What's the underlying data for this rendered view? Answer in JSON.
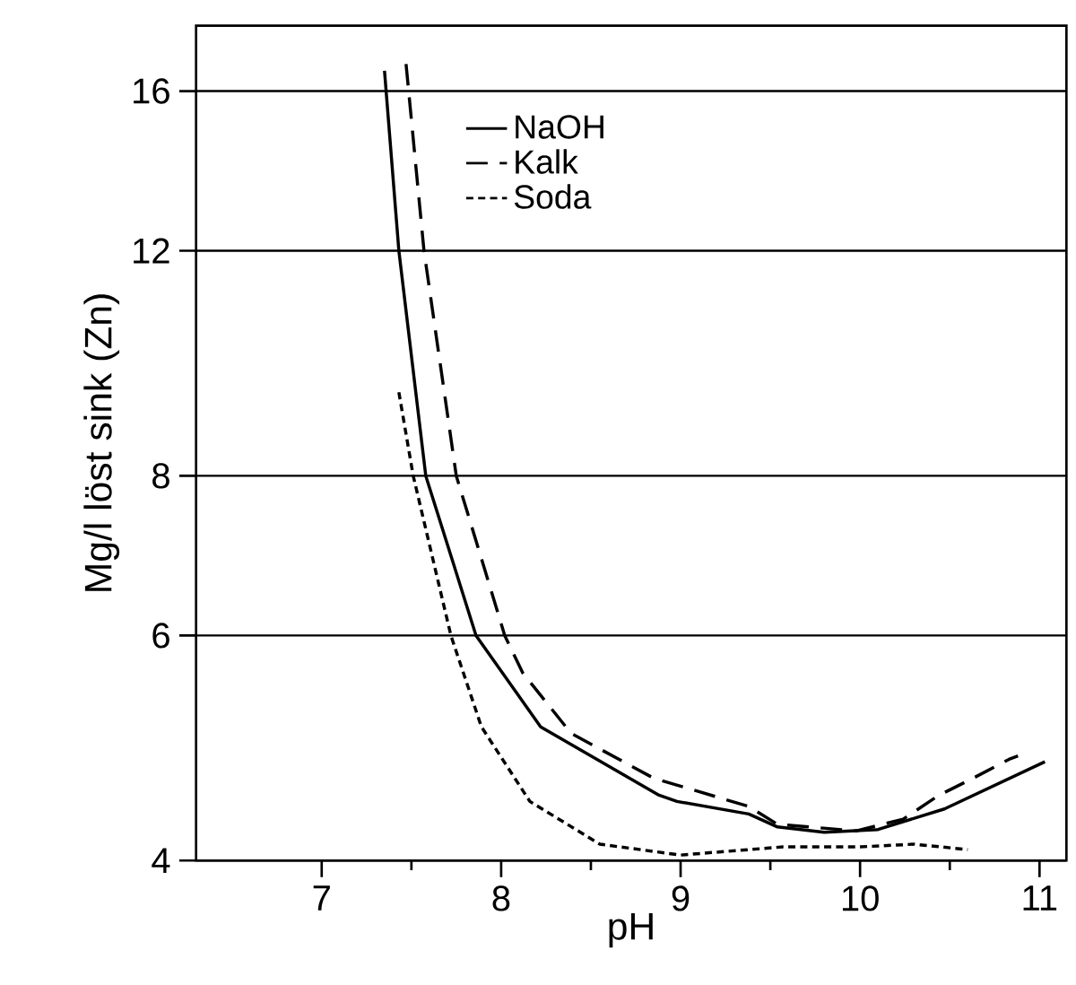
{
  "chart_data": {
    "type": "line",
    "xlabel": "pH",
    "ylabel": "Mg/l löst sink (Zn)",
    "xlim": [
      6.3,
      11.15
    ],
    "xticks": [
      7,
      8,
      9,
      10,
      11
    ],
    "ylim": [
      4,
      18
    ],
    "yticks": [
      4,
      6,
      8,
      12,
      16
    ],
    "grid": "y",
    "log": true,
    "legend": "top",
    "series": [
      {
        "name": "NaOH",
        "color": "#000000",
        "line_style": "solid",
        "x": [
          7.35,
          7.43,
          7.58,
          7.86,
          8.22,
          8.88,
          8.98,
          9.38,
          9.54,
          9.8,
          10.1,
          10.47,
          11.03
        ],
        "values": [
          16.6,
          12,
          8,
          6,
          5.09,
          4.5,
          4.45,
          4.35,
          4.25,
          4.21,
          4.23,
          4.39,
          4.78
        ]
      },
      {
        "name": "Kalk",
        "color": "#000000",
        "line_style": "dashed",
        "x": [
          7.47,
          7.57,
          7.75,
          8.02,
          8.12,
          8.39,
          8.85,
          9.38,
          9.54,
          9.98,
          10.24,
          10.44,
          10.63,
          10.83,
          10.88
        ],
        "values": [
          16.8,
          12,
          8,
          6,
          5.61,
          5.03,
          4.64,
          4.41,
          4.27,
          4.22,
          4.31,
          4.5,
          4.64,
          4.8,
          4.83
        ]
      },
      {
        "name": "Soda",
        "color": "#000000",
        "line_style": "dotted",
        "x": [
          7.43,
          7.51,
          7.72,
          7.89,
          8.16,
          8.55,
          9.0,
          9.57,
          10.0,
          10.3,
          10.6
        ],
        "values": [
          9.3,
          8,
          6,
          5.09,
          4.45,
          4.12,
          4.04,
          4.1,
          4.1,
          4.12,
          4.08
        ]
      }
    ]
  }
}
